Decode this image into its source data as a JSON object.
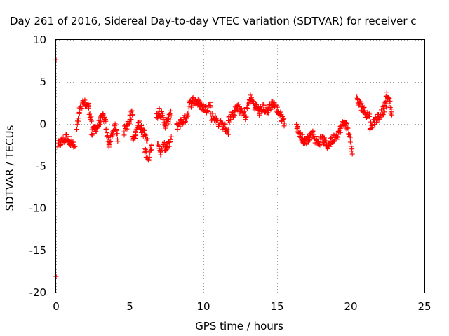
{
  "chart_data": {
    "type": "scatter",
    "title": "Day 261 of 2016, Sidereal Day-to-day VTEC variation (SDTVAR) for receiver c",
    "xlabel": "GPS time / hours",
    "ylabel": "SDTVAR / TECUs",
    "xlim": [
      0,
      25
    ],
    "ylim": [
      -20,
      10
    ],
    "xticks": [
      0,
      5,
      10,
      15,
      20,
      25
    ],
    "yticks": [
      -20,
      -15,
      -10,
      -5,
      0,
      5,
      10
    ],
    "grid": true,
    "marker": "+",
    "series_color": "#ff0000",
    "outliers": [
      [
        0.0,
        7.7
      ],
      [
        0.0,
        -18.1
      ]
    ],
    "segments": [
      {
        "x": [
          0.1,
          0.4,
          0.7,
          1.0,
          1.3
        ],
        "y": [
          -2.5,
          -2.0,
          -1.6,
          -2.1,
          -2.8
        ]
      },
      {
        "x": [
          1.4,
          1.6,
          1.8,
          2.0,
          2.2,
          2.4
        ],
        "y": [
          -0.5,
          1.5,
          2.3,
          2.5,
          2.1,
          0.5
        ]
      },
      {
        "x": [
          2.4,
          2.6,
          2.8,
          3.0,
          3.2,
          3.4
        ],
        "y": [
          -1.2,
          -0.6,
          -0.3,
          0.4,
          0.9,
          -0.2
        ]
      },
      {
        "x": [
          3.4,
          3.6,
          3.8,
          4.0,
          4.2
        ],
        "y": [
          -1.0,
          -2.3,
          -1.1,
          -0.4,
          -1.7
        ]
      },
      {
        "x": [
          4.6,
          4.8,
          5.0,
          5.2
        ],
        "y": [
          -0.9,
          -0.2,
          0.6,
          1.5
        ]
      },
      {
        "x": [
          5.2,
          5.4,
          5.6,
          5.8,
          6.0,
          6.2
        ],
        "y": [
          -1.5,
          -1.2,
          0.3,
          -0.6,
          -1.2,
          -2.2
        ]
      },
      {
        "x": [
          6.0,
          6.3,
          6.5
        ],
        "y": [
          -3.0,
          -4.2,
          -2.0
        ]
      },
      {
        "x": [
          6.8,
          7.0,
          7.2,
          7.4,
          7.6,
          7.8
        ],
        "y": [
          0.8,
          1.6,
          0.9,
          0.0,
          0.4,
          1.2
        ]
      },
      {
        "x": [
          6.9,
          7.1,
          7.3,
          7.5,
          7.8
        ],
        "y": [
          -2.0,
          -3.4,
          -2.6,
          -2.9,
          -1.9
        ]
      },
      {
        "x": [
          8.2,
          8.5,
          8.8,
          9.0
        ],
        "y": [
          -0.2,
          0.3,
          0.7,
          1.6
        ]
      },
      {
        "x": [
          9.0,
          9.3,
          9.6,
          9.9,
          10.2,
          10.5
        ],
        "y": [
          2.2,
          2.8,
          2.6,
          2.1,
          1.8,
          2.4
        ]
      },
      {
        "x": [
          10.5,
          10.8,
          11.1,
          11.4,
          11.7
        ],
        "y": [
          1.0,
          0.6,
          0.1,
          -0.3,
          -0.8
        ]
      },
      {
        "x": [
          11.7,
          12.0,
          12.3,
          12.6,
          12.9
        ],
        "y": [
          0.4,
          1.2,
          2.0,
          1.4,
          0.9
        ]
      },
      {
        "x": [
          12.9,
          13.2,
          13.5,
          13.8,
          14.1,
          14.4
        ],
        "y": [
          1.8,
          3.0,
          2.2,
          1.5,
          2.0,
          1.3
        ]
      },
      {
        "x": [
          14.4,
          14.7,
          15.0,
          15.3,
          15.5
        ],
        "y": [
          1.9,
          2.5,
          1.7,
          0.8,
          0.2
        ]
      },
      {
        "x": [
          16.3,
          16.6,
          16.9,
          17.2,
          17.5
        ],
        "y": [
          -0.2,
          -1.4,
          -2.2,
          -1.5,
          -1.0
        ]
      },
      {
        "x": [
          17.5,
          17.8,
          18.1,
          18.4,
          18.7,
          19.0
        ],
        "y": [
          -1.6,
          -2.1,
          -1.8,
          -2.6,
          -2.0,
          -1.2
        ]
      },
      {
        "x": [
          19.0,
          19.3,
          19.6,
          19.9,
          20.1
        ],
        "y": [
          -1.5,
          -0.5,
          0.3,
          -1.2,
          -3.4
        ]
      },
      {
        "x": [
          20.4,
          20.7,
          21.0,
          21.3
        ],
        "y": [
          2.8,
          2.2,
          1.3,
          1.0
        ]
      },
      {
        "x": [
          21.3,
          21.6,
          21.9,
          22.2,
          22.4
        ],
        "y": [
          -0.2,
          0.3,
          0.9,
          1.6,
          2.4
        ]
      },
      {
        "x": [
          22.4,
          22.6,
          22.8
        ],
        "y": [
          3.5,
          2.8,
          1.0
        ]
      }
    ]
  }
}
